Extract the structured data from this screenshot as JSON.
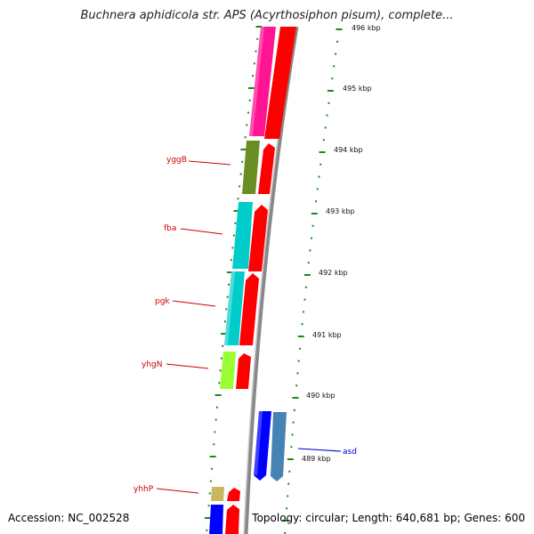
{
  "title": "Buchnera aphidicola str. APS (Acyrthosiphon pisum), complete...",
  "accession": "Accession: NC_002528",
  "topology": "Topology: circular; Length: 640,681 bp; Genes: 600",
  "tick_labels": [
    "496 kbp",
    "495 kbp",
    "494 kbp",
    "493 kbp",
    "492 kbp",
    "491 kbp",
    "490 kbp",
    "489 kbp"
  ],
  "genes": [
    {
      "name": "yggB",
      "color": "#cc0000"
    },
    {
      "name": "fba",
      "color": "#cc0000"
    },
    {
      "name": "pgk",
      "color": "#cc0000"
    },
    {
      "name": "yhgN",
      "color": "#cc0000"
    },
    {
      "name": "asd",
      "color": "#0000cc"
    },
    {
      "name": "yhhP",
      "color": "#cc0000"
    }
  ],
  "colors": {
    "backbone": "#8a8a8a",
    "tick": "#1a8a1a",
    "cog_pink": "#ff1493",
    "cog_red": "#ff0000",
    "cog_olive": "#6b8e23",
    "cog_cyan": "#00cccc",
    "cog_lime": "#99ff33",
    "cog_blue": "#0000ff",
    "cog_steel": "#4682b4",
    "cog_khaki": "#c8b860"
  }
}
